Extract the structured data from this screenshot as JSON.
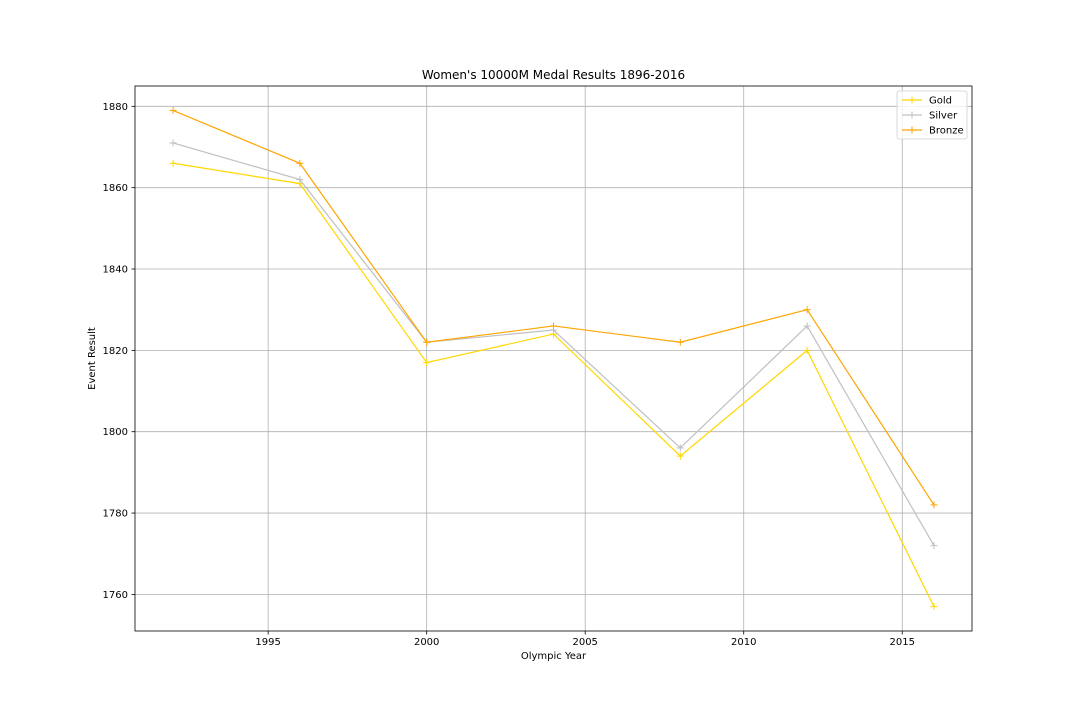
{
  "chart_data": {
    "type": "line",
    "title": "Women's 10000M Medal Results 1896-2016",
    "xlabel": "Olympic Year",
    "ylabel": "Event Result",
    "x": [
      1992,
      1996,
      2000,
      2004,
      2008,
      2012,
      2016
    ],
    "xlim": [
      1990.8,
      2017.2
    ],
    "ylim": [
      1751,
      1885
    ],
    "xticks": [
      1995,
      2000,
      2005,
      2010,
      2015
    ],
    "yticks": [
      1760,
      1780,
      1800,
      1820,
      1840,
      1860,
      1880
    ],
    "grid": true,
    "legend_position": "top-right",
    "marker": "+",
    "series": [
      {
        "name": "Gold",
        "color": "#FFD700",
        "values": [
          1866,
          1861,
          1817,
          1824,
          1794,
          1820,
          1757
        ]
      },
      {
        "name": "Silver",
        "color": "#C0C0C0",
        "values": [
          1871,
          1862,
          1822,
          1825,
          1796,
          1826,
          1772
        ]
      },
      {
        "name": "Bronze",
        "color": "#FFA500",
        "values": [
          1879,
          1866,
          1822,
          1826,
          1822,
          1830,
          1782
        ]
      }
    ]
  }
}
